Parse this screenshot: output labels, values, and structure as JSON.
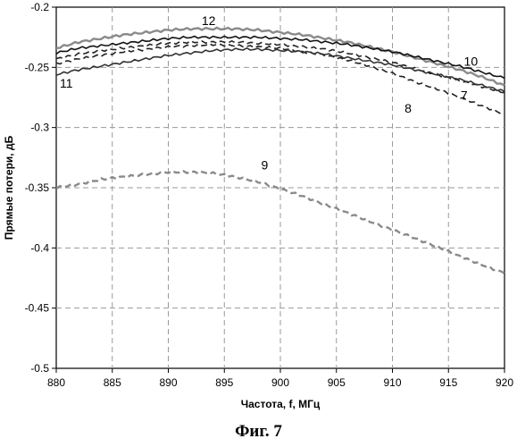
{
  "figure": {
    "caption": "Фиг. 7"
  },
  "chart_data": {
    "type": "line",
    "title": "",
    "xlabel": "Частота, f, МГц",
    "ylabel": "Прямые потери, дБ",
    "xlim": [
      880,
      920
    ],
    "ylim": [
      -0.5,
      -0.2
    ],
    "xticks": [
      880,
      885,
      890,
      895,
      900,
      905,
      910,
      915,
      920
    ],
    "yticks": [
      -0.2,
      -0.25,
      -0.3,
      -0.35,
      -0.4,
      -0.45,
      -0.5
    ],
    "grid": true,
    "legend": "none",
    "series": [
      {
        "name": "12",
        "color": "#8a8a8a",
        "style": "solid",
        "x": [
          880,
          882,
          884,
          886,
          888,
          890,
          892,
          894,
          896,
          898,
          900,
          902,
          904,
          906,
          908,
          910,
          912,
          914,
          916,
          918,
          920
        ],
        "y": [
          -0.234,
          -0.229,
          -0.226,
          -0.223,
          -0.221,
          -0.219,
          -0.218,
          -0.218,
          -0.218,
          -0.219,
          -0.221,
          -0.223,
          -0.226,
          -0.229,
          -0.233,
          -0.237,
          -0.242,
          -0.247,
          -0.252,
          -0.258,
          -0.265
        ]
      },
      {
        "name": "10",
        "color": "#111111",
        "style": "solid",
        "x": [
          880,
          882,
          884,
          886,
          888,
          890,
          892,
          894,
          896,
          898,
          900,
          902,
          904,
          906,
          908,
          910,
          912,
          914,
          916,
          918,
          920
        ],
        "y": [
          -0.238,
          -0.234,
          -0.232,
          -0.23,
          -0.228,
          -0.226,
          -0.225,
          -0.225,
          -0.225,
          -0.225,
          -0.226,
          -0.227,
          -0.229,
          -0.231,
          -0.234,
          -0.237,
          -0.241,
          -0.245,
          -0.249,
          -0.254,
          -0.259
        ]
      },
      {
        "name": "7",
        "color": "#222222",
        "style": "dashed",
        "x": [
          880,
          882,
          884,
          886,
          888,
          890,
          892,
          894,
          896,
          898,
          900,
          902,
          904,
          906,
          908,
          910,
          912,
          914,
          916,
          918,
          920
        ],
        "y": [
          -0.243,
          -0.239,
          -0.236,
          -0.234,
          -0.232,
          -0.23,
          -0.229,
          -0.229,
          -0.229,
          -0.23,
          -0.231,
          -0.233,
          -0.235,
          -0.238,
          -0.242,
          -0.246,
          -0.251,
          -0.256,
          -0.261,
          -0.266,
          -0.271
        ]
      },
      {
        "name": "8",
        "color": "#222222",
        "style": "dashed",
        "x": [
          880,
          882,
          884,
          886,
          888,
          890,
          892,
          894,
          896,
          898,
          900,
          902,
          904,
          906,
          908,
          910,
          912,
          914,
          916,
          918,
          920
        ],
        "y": [
          -0.247,
          -0.243,
          -0.24,
          -0.237,
          -0.235,
          -0.233,
          -0.232,
          -0.231,
          -0.232,
          -0.233,
          -0.234,
          -0.237,
          -0.24,
          -0.244,
          -0.249,
          -0.255,
          -0.262,
          -0.268,
          -0.275,
          -0.282,
          -0.289
        ]
      },
      {
        "name": "11",
        "color": "#333333",
        "style": "solid",
        "x": [
          880,
          882,
          884,
          886,
          888,
          890,
          892,
          894,
          896,
          898,
          900,
          902,
          904,
          906,
          908,
          910,
          912,
          914,
          916,
          918,
          920
        ],
        "y": [
          -0.256,
          -0.252,
          -0.249,
          -0.246,
          -0.243,
          -0.24,
          -0.238,
          -0.236,
          -0.235,
          -0.235,
          -0.236,
          -0.237,
          -0.239,
          -0.242,
          -0.245,
          -0.248,
          -0.252,
          -0.256,
          -0.26,
          -0.265,
          -0.27
        ]
      },
      {
        "name": "9",
        "color": "#8a8a8a",
        "style": "dashed",
        "x": [
          880,
          882,
          884,
          886,
          888,
          890,
          892,
          894,
          896,
          898,
          900,
          902,
          904,
          906,
          908,
          910,
          912,
          914,
          916,
          918,
          920
        ],
        "y": [
          -0.35,
          -0.347,
          -0.343,
          -0.341,
          -0.339,
          -0.337,
          -0.337,
          -0.338,
          -0.341,
          -0.345,
          -0.351,
          -0.357,
          -0.364,
          -0.371,
          -0.378,
          -0.385,
          -0.392,
          -0.399,
          -0.407,
          -0.414,
          -0.421
        ]
      }
    ],
    "annotations": [
      {
        "text": "12",
        "x": 893.6,
        "y": -0.211
      },
      {
        "text": "10",
        "x": 917.0,
        "y": -0.245
      },
      {
        "text": "7",
        "x": 916.4,
        "y": -0.273
      },
      {
        "text": "8",
        "x": 911.4,
        "y": -0.284
      },
      {
        "text": "11",
        "x": 880.9,
        "y": -0.263
      },
      {
        "text": "9",
        "x": 898.6,
        "y": -0.331
      }
    ]
  }
}
